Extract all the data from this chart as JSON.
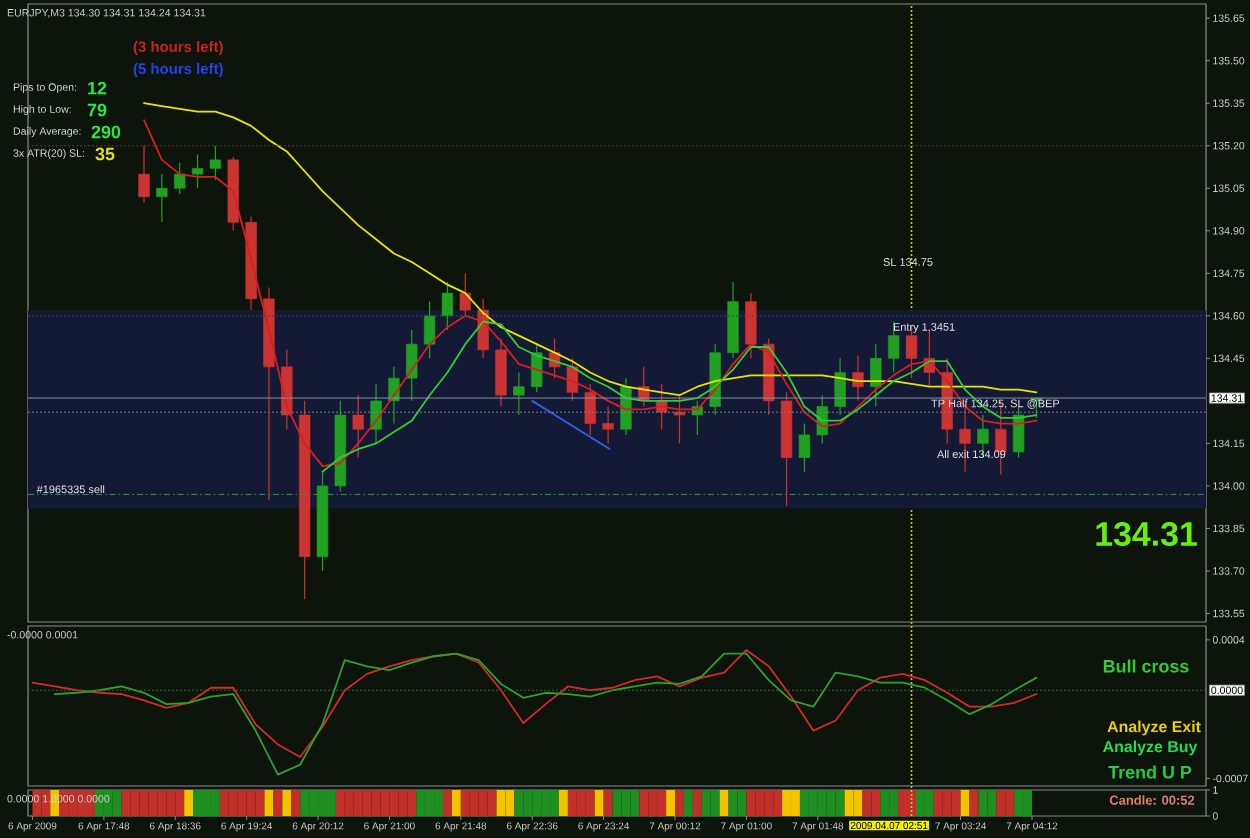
{
  "chart_data": [
    {
      "type": "candlestick",
      "title": "EURJPY,M3 134.30 134.31 134.24 134.31",
      "x": [
        "2009-04-06T18:15",
        "2009-04-06T18:27",
        "2009-04-06T18:39",
        "2009-04-06T18:51",
        "2009-04-06T19:03",
        "2009-04-06T19:15",
        "2009-04-06T19:27",
        "2009-04-06T19:39",
        "2009-04-06T19:51",
        "2009-04-06T20:03",
        "2009-04-06T20:15",
        "2009-04-06T20:27",
        "2009-04-06T20:39",
        "2009-04-06T20:51",
        "2009-04-06T21:03",
        "2009-04-06T21:15",
        "2009-04-06T21:27",
        "2009-04-06T21:39",
        "2009-04-06T21:51",
        "2009-04-06T22:03",
        "2009-04-06T22:15",
        "2009-04-06T22:27",
        "2009-04-06T22:39",
        "2009-04-06T22:51",
        "2009-04-06T23:03",
        "2009-04-06T23:15",
        "2009-04-06T23:27",
        "2009-04-06T23:39",
        "2009-04-06T23:51",
        "2009-04-07T00:03",
        "2009-04-07T00:15",
        "2009-04-07T00:27",
        "2009-04-07T00:39",
        "2009-04-07T00:51",
        "2009-04-07T01:03",
        "2009-04-07T01:15",
        "2009-04-07T01:27",
        "2009-04-07T01:39",
        "2009-04-07T01:51",
        "2009-04-07T02:03",
        "2009-04-07T02:15",
        "2009-04-07T02:27",
        "2009-04-07T02:39",
        "2009-04-07T02:51",
        "2009-04-07T03:03",
        "2009-04-07T03:15",
        "2009-04-07T03:27",
        "2009-04-07T03:39",
        "2009-04-07T03:51",
        "2009-04-07T04:03",
        "2009-04-07T04:15"
      ],
      "ohlc": [
        [
          135.1,
          135.2,
          135.0,
          135.02
        ],
        [
          135.02,
          135.1,
          134.93,
          135.05
        ],
        [
          135.05,
          135.14,
          135.03,
          135.1
        ],
        [
          135.1,
          135.17,
          135.05,
          135.12
        ],
        [
          135.12,
          135.2,
          135.08,
          135.15
        ],
        [
          135.15,
          135.16,
          134.9,
          134.93
        ],
        [
          134.93,
          134.95,
          134.62,
          134.66
        ],
        [
          134.66,
          134.7,
          133.95,
          134.42
        ],
        [
          134.42,
          134.48,
          134.2,
          134.25
        ],
        [
          134.25,
          134.3,
          133.6,
          133.75
        ],
        [
          133.75,
          134.05,
          133.7,
          134.0
        ],
        [
          134.0,
          134.3,
          133.98,
          134.25
        ],
        [
          134.25,
          134.32,
          134.1,
          134.2
        ],
        [
          134.2,
          134.36,
          134.15,
          134.3
        ],
        [
          134.3,
          134.42,
          134.22,
          134.38
        ],
        [
          134.38,
          134.55,
          134.3,
          134.5
        ],
        [
          134.5,
          134.65,
          134.45,
          134.6
        ],
        [
          134.6,
          134.72,
          134.55,
          134.68
        ],
        [
          134.68,
          134.75,
          134.6,
          134.62
        ],
        [
          134.62,
          134.66,
          134.45,
          134.48
        ],
        [
          134.48,
          134.52,
          134.28,
          134.32
        ],
        [
          134.32,
          134.4,
          134.25,
          134.35
        ],
        [
          134.35,
          134.5,
          134.33,
          134.47
        ],
        [
          134.47,
          134.52,
          134.38,
          134.42
        ],
        [
          134.42,
          134.45,
          134.3,
          134.33
        ],
        [
          134.33,
          134.36,
          134.18,
          134.22
        ],
        [
          134.22,
          134.28,
          134.15,
          134.2
        ],
        [
          134.2,
          134.38,
          134.18,
          134.35
        ],
        [
          134.35,
          134.42,
          134.28,
          134.3
        ],
        [
          134.3,
          134.36,
          134.2,
          134.26
        ],
        [
          134.26,
          134.32,
          134.15,
          134.25
        ],
        [
          134.25,
          134.3,
          134.18,
          134.28
        ],
        [
          134.28,
          134.5,
          134.25,
          134.47
        ],
        [
          134.47,
          134.72,
          134.45,
          134.65
        ],
        [
          134.65,
          134.68,
          134.45,
          134.5
        ],
        [
          134.5,
          134.52,
          134.25,
          134.3
        ],
        [
          134.3,
          134.33,
          133.93,
          134.1
        ],
        [
          134.1,
          134.22,
          134.05,
          134.18
        ],
        [
          134.18,
          134.32,
          134.15,
          134.28
        ],
        [
          134.28,
          134.45,
          134.25,
          134.4
        ],
        [
          134.4,
          134.46,
          134.3,
          134.35
        ],
        [
          134.35,
          134.5,
          134.28,
          134.45
        ],
        [
          134.45,
          134.58,
          134.4,
          134.53
        ],
        [
          134.53,
          134.56,
          134.38,
          134.45
        ],
        [
          134.45,
          134.55,
          134.35,
          134.4
        ],
        [
          134.4,
          134.45,
          134.15,
          134.2
        ],
        [
          134.2,
          134.28,
          134.05,
          134.15
        ],
        [
          134.15,
          134.25,
          134.1,
          134.2
        ],
        [
          134.2,
          134.3,
          134.04,
          134.12
        ],
        [
          134.12,
          134.28,
          134.1,
          134.25
        ],
        [
          134.3,
          134.31,
          134.24,
          134.31
        ]
      ],
      "colors": [
        "#cc3333",
        "#22a022",
        "#22a022",
        "#22a022",
        "#22a022",
        "#cc3333",
        "#cc3333",
        "#cc3333",
        "#cc3333",
        "#cc3333",
        "#22a022",
        "#22a022",
        "#cc3333",
        "#22a022",
        "#22a022",
        "#22a022",
        "#22a022",
        "#22a022",
        "#cc3333",
        "#cc3333",
        "#cc3333",
        "#22a022",
        "#22a022",
        "#cc3333",
        "#cc3333",
        "#cc3333",
        "#cc3333",
        "#22a022",
        "#cc3333",
        "#cc3333",
        "#cc3333",
        "#22a022",
        "#22a022",
        "#22a022",
        "#cc3333",
        "#cc3333",
        "#cc3333",
        "#22a022",
        "#22a022",
        "#22a022",
        "#cc3333",
        "#22a022",
        "#22a022",
        "#cc3333",
        "#cc3333",
        "#cc3333",
        "#cc3333",
        "#22a022",
        "#cc3333",
        "#22a022",
        "#22a022"
      ],
      "series": [
        {
          "type": "line",
          "color": "#e6e600",
          "values": [
            135.35,
            135.34,
            135.33,
            135.32,
            135.32,
            135.3,
            135.27,
            135.22,
            135.18,
            135.11,
            135.04,
            134.98,
            134.92,
            134.87,
            134.82,
            134.79,
            134.75,
            134.71,
            134.68,
            134.61,
            134.56,
            134.53,
            134.5,
            134.47,
            134.44,
            134.4,
            134.37,
            134.35,
            134.34,
            134.33,
            134.32,
            134.35,
            134.37,
            134.38,
            134.39,
            134.39,
            134.39,
            134.39,
            134.39,
            134.38,
            134.37,
            134.37,
            134.37,
            134.36,
            134.35,
            134.35,
            134.35,
            134.35,
            134.34,
            134.34,
            134.33
          ]
        },
        {
          "type": "line",
          "color": "#d62020",
          "values": [
            135.29,
            135.15,
            135.1,
            135.09,
            135.09,
            135.04,
            134.8,
            134.55,
            134.28,
            134.15,
            134.07,
            134.08,
            134.15,
            134.23,
            134.32,
            134.41,
            134.5,
            134.56,
            134.6,
            134.58,
            134.51,
            134.43,
            134.41,
            134.39,
            134.37,
            134.34,
            134.3,
            134.27,
            134.27,
            134.28,
            134.27,
            134.27,
            134.34,
            134.43,
            134.5,
            134.47,
            134.36,
            134.26,
            134.21,
            134.22,
            134.28,
            134.34,
            134.39,
            134.43,
            134.44,
            134.37,
            134.28,
            134.23,
            134.22,
            134.22,
            134.23
          ]
        },
        {
          "type": "line",
          "color": "#33cc33",
          "values": [
            null,
            null,
            null,
            null,
            null,
            null,
            null,
            null,
            null,
            null,
            134.05,
            134.1,
            134.13,
            134.15,
            134.19,
            134.23,
            134.32,
            134.4,
            134.5,
            134.58,
            134.57,
            134.49,
            134.46,
            134.44,
            134.42,
            134.38,
            134.35,
            134.31,
            134.3,
            134.3,
            134.3,
            134.31,
            134.35,
            134.41,
            134.49,
            134.49,
            134.4,
            134.28,
            134.23,
            134.23,
            134.27,
            134.32,
            134.37,
            134.4,
            134.44,
            134.44,
            134.34,
            134.28,
            134.24,
            134.24,
            134.25
          ]
        },
        {
          "type": "line",
          "color": "#2f5fe0",
          "x": [
            "2009-04-06T22:36",
            "2009-04-06T23:28"
          ],
          "values": [
            134.3,
            134.13
          ]
        }
      ],
      "xlim": [
        "2009-04-06T16:57",
        "2009-04-07T06:09"
      ],
      "ylim": [
        133.52,
        135.7
      ],
      "yticks": [
        135.65,
        {
          "value": 135.5,
          "label": "135.50"
        },
        135.35,
        {
          "value": 135.2,
          "label": "135.20"
        },
        135.05,
        {
          "value": 134.9,
          "label": "134.90"
        },
        134.75,
        {
          "value": 134.6,
          "label": "134.60"
        },
        134.45,
        134.15,
        {
          "value": 134,
          "label": "134.00"
        },
        133.85,
        {
          "value": 133.7,
          "label": "133.70"
        },
        133.55
      ],
      "tick_labels": "y",
      "bands": [
        {
          "axis": "y",
          "from": 133.92,
          "to": 134.62,
          "color": "#141a36"
        }
      ],
      "ref_lines": [
        {
          "axis": "y",
          "value": 135.2,
          "color": "#5c3c2c",
          "line_style": "dotted"
        },
        {
          "axis": "y",
          "value": 134.6,
          "color": "#3c4c3c",
          "line_style": "dotted"
        },
        {
          "axis": "y",
          "value": 134.26,
          "color": "#7c7c7c",
          "line_style": "dotted"
        },
        {
          "axis": "y",
          "value": 134.31,
          "label": "134.31",
          "color": "#8a92a8"
        },
        {
          "axis": "y",
          "value": 133.97,
          "color": "#2a9a2a",
          "line_style": "dashed"
        }
      ],
      "annotations": [
        "(3 hours left)",
        "(5 hours left)",
        "Pips to Open:",
        "12",
        "High to Low:",
        "79",
        "Daily Average:",
        "290",
        "3x ATR(20) SL:",
        "35",
        "134.31",
        "SL 134.75",
        "Entry 1.3451",
        "TP Half 134.25, SL @BEP",
        "All exit 134.09",
        {
          "text": "#1965335 sell",
          "x": "2009-04-06T17:02",
          "y": 133.97
        }
      ]
    },
    {
      "type": "line",
      "title": "-0.0000 0.0001",
      "x": [
        "2009-04-06T17:00",
        "2009-04-06T17:15",
        "2009-04-06T17:30",
        "2009-04-06T17:45",
        "2009-04-06T18:00",
        "2009-04-06T18:15",
        "2009-04-06T18:30",
        "2009-04-06T18:45",
        "2009-04-06T19:00",
        "2009-04-06T19:15",
        "2009-04-06T19:30",
        "2009-04-06T19:45",
        "2009-04-06T20:00",
        "2009-04-06T20:15",
        "2009-04-06T20:30",
        "2009-04-06T20:45",
        "2009-04-06T21:00",
        "2009-04-06T21:15",
        "2009-04-06T21:30",
        "2009-04-06T21:45",
        "2009-04-06T22:00",
        "2009-04-06T22:15",
        "2009-04-06T22:30",
        "2009-04-06T22:45",
        "2009-04-06T23:00",
        "2009-04-06T23:15",
        "2009-04-06T23:30",
        "2009-04-06T23:45",
        "2009-04-07T00:00",
        "2009-04-07T00:15",
        "2009-04-07T00:30",
        "2009-04-07T00:45",
        "2009-04-07T01:00",
        "2009-04-07T01:15",
        "2009-04-07T01:30",
        "2009-04-07T01:45",
        "2009-04-07T02:00",
        "2009-04-07T02:15",
        "2009-04-07T02:30",
        "2009-04-07T02:45",
        "2009-04-07T03:00",
        "2009-04-07T03:15",
        "2009-04-07T03:30",
        "2009-04-07T03:45",
        "2009-04-07T04:00",
        "2009-04-07T04:15"
      ],
      "series": [
        {
          "color": "#d42a2a",
          "values": [
            6e-05,
            3e-05,
            0,
            -2e-05,
            -3e-05,
            -8e-05,
            -0.00014,
            -0.0001,
            2e-05,
            2e-05,
            -0.00027,
            -0.00043,
            -0.00053,
            -0.00029,
            0,
            0.00013,
            0.00019,
            0.00024,
            0.00027,
            0.00029,
            0.00022,
            0,
            -0.00026,
            -0.00011,
            3e-05,
            0,
            2e-05,
            8e-05,
            0.00011,
            3e-05,
            0.0001,
            0.00014,
            0.00032,
            0.00019,
            -5e-05,
            -0.00032,
            -0.00024,
            0,
            0.0001,
            0.00013,
            8e-05,
            -2e-05,
            -0.00013,
            -0.00013,
            -0.0001,
            -3e-05
          ]
        },
        {
          "color": "#2fa02f",
          "values": [
            null,
            -3e-05,
            -2e-05,
            0,
            3e-05,
            -2e-05,
            -0.00011,
            -0.0001,
            -5e-05,
            -3e-05,
            -0.00032,
            -0.00067,
            -0.00059,
            -0.00027,
            0.00024,
            0.00019,
            0.00016,
            0.00022,
            0.00027,
            0.00029,
            0.00024,
            5e-05,
            -6e-05,
            -2e-05,
            -3e-05,
            -5e-05,
            0,
            3e-05,
            6e-05,
            5e-05,
            0.00011,
            0.00029,
            0.00029,
            8e-05,
            -8e-05,
            -0.00013,
            0.00014,
            0.00011,
            6e-05,
            6e-05,
            2e-05,
            -8e-05,
            -0.00019,
            -0.00011,
            0,
            0.0001
          ]
        }
      ],
      "xlim": [
        "2009-04-06T16:57",
        "2009-04-07T06:09"
      ],
      "ylim": [
        -0.00076,
        0.00051
      ],
      "yticks": [
        0.0004,
        -0.0007
      ],
      "tick_labels": "y",
      "ref_lines": [
        {
          "axis": "y",
          "value": 0,
          "label": "0.0000",
          "color": "#2a6a2a",
          "line_style": "dotted"
        }
      ],
      "annotations": [
        "Bull cross",
        "Analyze Exit",
        "Analyze Buy",
        "Trend U P"
      ]
    },
    {
      "type": "bar",
      "title": "0.0000 1.0000 0.0000",
      "x": [
        "2009-04-06T17:03",
        "2009-04-06T17:09",
        "2009-04-06T17:15",
        "2009-04-06T17:21",
        "2009-04-06T17:27",
        "2009-04-06T17:33",
        "2009-04-06T17:39",
        "2009-04-06T17:45",
        "2009-04-06T17:51",
        "2009-04-06T17:57",
        "2009-04-06T18:03",
        "2009-04-06T18:09",
        "2009-04-06T18:15",
        "2009-04-06T18:21",
        "2009-04-06T18:27",
        "2009-04-06T18:33",
        "2009-04-06T18:39",
        "2009-04-06T18:45",
        "2009-04-06T18:51",
        "2009-04-06T18:57",
        "2009-04-06T19:03",
        "2009-04-06T19:09",
        "2009-04-06T19:15",
        "2009-04-06T19:21",
        "2009-04-06T19:27",
        "2009-04-06T19:33",
        "2009-04-06T19:39",
        "2009-04-06T19:45",
        "2009-04-06T19:51",
        "2009-04-06T19:57",
        "2009-04-06T20:03",
        "2009-04-06T20:09",
        "2009-04-06T20:15",
        "2009-04-06T20:21",
        "2009-04-06T20:27",
        "2009-04-06T20:33",
        "2009-04-06T20:39",
        "2009-04-06T20:45",
        "2009-04-06T20:51",
        "2009-04-06T20:57",
        "2009-04-06T21:03",
        "2009-04-06T21:09",
        "2009-04-06T21:15",
        "2009-04-06T21:21",
        "2009-04-06T21:27",
        "2009-04-06T21:33",
        "2009-04-06T21:39",
        "2009-04-06T21:45",
        "2009-04-06T21:51",
        "2009-04-06T21:57",
        "2009-04-06T22:03",
        "2009-04-06T22:09",
        "2009-04-06T22:15",
        "2009-04-06T22:21",
        "2009-04-06T22:27",
        "2009-04-06T22:33",
        "2009-04-06T22:39",
        "2009-04-06T22:45",
        "2009-04-06T22:51",
        "2009-04-06T22:57",
        "2009-04-06T23:03",
        "2009-04-06T23:09",
        "2009-04-06T23:15",
        "2009-04-06T23:21",
        "2009-04-06T23:27",
        "2009-04-06T23:33",
        "2009-04-06T23:39",
        "2009-04-06T23:45",
        "2009-04-06T23:51",
        "2009-04-06T23:57",
        "2009-04-07T00:03",
        "2009-04-07T00:09",
        "2009-04-07T00:15",
        "2009-04-07T00:21",
        "2009-04-07T00:27",
        "2009-04-07T00:33",
        "2009-04-07T00:39",
        "2009-04-07T00:45",
        "2009-04-07T00:51",
        "2009-04-07T00:57",
        "2009-04-07T01:03",
        "2009-04-07T01:09",
        "2009-04-07T01:15",
        "2009-04-07T01:21",
        "2009-04-07T01:27",
        "2009-04-07T01:33",
        "2009-04-07T01:39",
        "2009-04-07T01:45",
        "2009-04-07T01:51",
        "2009-04-07T01:57",
        "2009-04-07T02:03",
        "2009-04-07T02:09",
        "2009-04-07T02:15",
        "2009-04-07T02:21",
        "2009-04-07T02:27",
        "2009-04-07T02:33",
        "2009-04-07T02:39",
        "2009-04-07T02:45",
        "2009-04-07T02:51",
        "2009-04-07T02:57",
        "2009-04-07T03:03",
        "2009-04-07T03:09",
        "2009-04-07T03:15",
        "2009-04-07T03:21",
        "2009-04-07T03:27",
        "2009-04-07T03:33",
        "2009-04-07T03:39",
        "2009-04-07T03:45",
        "2009-04-07T03:51",
        "2009-04-07T03:57",
        "2009-04-07T04:03",
        "2009-04-07T04:09"
      ],
      "values": [
        1,
        1,
        1,
        1,
        1,
        1,
        1,
        1,
        1,
        1,
        1,
        1,
        1,
        1,
        1,
        1,
        1,
        1,
        1,
        1,
        1,
        1,
        1,
        1,
        1,
        1,
        1,
        1,
        1,
        1,
        1,
        1,
        1,
        1,
        1,
        1,
        1,
        1,
        1,
        1,
        1,
        1,
        1,
        1,
        1,
        1,
        1,
        1,
        1,
        1,
        1,
        1,
        1,
        1,
        1,
        1,
        1,
        1,
        1,
        1,
        1,
        1,
        1,
        1,
        1,
        1,
        1,
        1,
        1,
        1,
        1,
        1,
        1,
        1,
        1,
        1,
        1,
        1,
        1,
        1,
        1,
        1,
        1,
        1,
        1,
        1,
        1,
        1,
        1,
        1,
        1,
        1,
        1,
        1,
        1,
        1,
        1,
        1,
        1,
        1,
        1,
        1,
        1,
        1,
        1,
        1,
        1,
        1,
        1,
        1,
        1,
        1
      ],
      "colors": [
        "#c2302a",
        "#c2302a",
        "#f2c400",
        "#c2302a",
        "#c2302a",
        "#c2302a",
        "#c2302a",
        "#1f8f22",
        "#1f8f22",
        "#1f8f22",
        "#c2302a",
        "#c2302a",
        "#c2302a",
        "#c2302a",
        "#c2302a",
        "#c2302a",
        "#c2302a",
        "#f2c400",
        "#1f8f22",
        "#1f8f22",
        "#1f8f22",
        "#c2302a",
        "#c2302a",
        "#c2302a",
        "#c2302a",
        "#c2302a",
        "#f2c400",
        "#c2302a",
        "#f2c400",
        "#c2302a",
        "#1f8f22",
        "#1f8f22",
        "#1f8f22",
        "#1f8f22",
        "#c2302a",
        "#c2302a",
        "#c2302a",
        "#c2302a",
        "#c2302a",
        "#c2302a",
        "#c2302a",
        "#c2302a",
        "#c2302a",
        "#1f8f22",
        "#1f8f22",
        "#1f8f22",
        "#c2302a",
        "#f2c400",
        "#c2302a",
        "#c2302a",
        "#c2302a",
        "#c2302a",
        "#f2c400",
        "#f2c400",
        "#1f8f22",
        "#1f8f22",
        "#1f8f22",
        "#1f8f22",
        "#1f8f22",
        "#f2c400",
        "#c2302a",
        "#c2302a",
        "#c2302a",
        "#f2c400",
        "#c2302a",
        "#1f8f22",
        "#1f8f22",
        "#1f8f22",
        "#c2302a",
        "#c2302a",
        "#c2302a",
        "#f2c400",
        "#c2302a",
        "#1f8f22",
        "#c2302a",
        "#1f8f22",
        "#1f8f22",
        "#f2c400",
        "#1f8f22",
        "#1f8f22",
        "#c2302a",
        "#c2302a",
        "#c2302a",
        "#c2302a",
        "#f2c400",
        "#f2c400",
        "#1f8f22",
        "#1f8f22",
        "#1f8f22",
        "#1f8f22",
        "#1f8f22",
        "#f2c400",
        "#f2c400",
        "#c2302a",
        "#c2302a",
        "#1f8f22",
        "#1f8f22",
        "#c2302a",
        "#c2302a",
        "#1f8f22",
        "#1f8f22",
        "#c2302a",
        "#c2302a",
        "#c2302a",
        "#f2c400",
        "#c2302a",
        "#1f8f22",
        "#1f8f22",
        "#c2302a",
        "#c2302a",
        "#1f8f22",
        "#1f8f22"
      ],
      "xlim": [
        "2009-04-06T16:57",
        "2009-04-07T06:09"
      ],
      "ylim": [
        0,
        1
      ],
      "yticks": [
        1,
        0
      ],
      "xticks": [
        {
          "value": "2009-04-06T17:00",
          "label": "6 Apr 2009"
        },
        {
          "value": "2009-04-06T17:48",
          "label": "6 Apr 17:48"
        },
        {
          "value": "2009-04-06T18:36",
          "label": "6 Apr 18:36"
        },
        {
          "value": "2009-04-06T19:24",
          "label": "6 Apr 19:24"
        },
        {
          "value": "2009-04-06T20:12",
          "label": "6 Apr 20:12"
        },
        {
          "value": "2009-04-06T21:00",
          "label": "6 Apr 21:00"
        },
        {
          "value": "2009-04-06T21:48",
          "label": "6 Apr 21:48"
        },
        {
          "value": "2009-04-06T22:36",
          "label": "6 Apr 22:36"
        },
        {
          "value": "2009-04-06T23:24",
          "label": "6 Apr 23:24"
        },
        {
          "value": "2009-04-07T00:12",
          "label": "7 Apr 00:12"
        },
        {
          "value": "2009-04-07T01:00",
          "label": "7 Apr 01:00"
        },
        {
          "value": "2009-04-07T01:48",
          "label": "7 Apr 01:48"
        },
        {
          "value": "2009-04-07T03:24",
          "label": "7 Apr 03:24"
        },
        {
          "value": "2009-04-07T04:12",
          "label": "7 Apr 04:12"
        }
      ],
      "ref_lines": [
        {
          "axis": "x",
          "value": "2009-04-07T02:51",
          "label": "2009.04.07 02:51",
          "color": "#d8c050",
          "line_style": "dotted"
        }
      ],
      "annotations": [
        "Candle: 00:52"
      ]
    }
  ]
}
